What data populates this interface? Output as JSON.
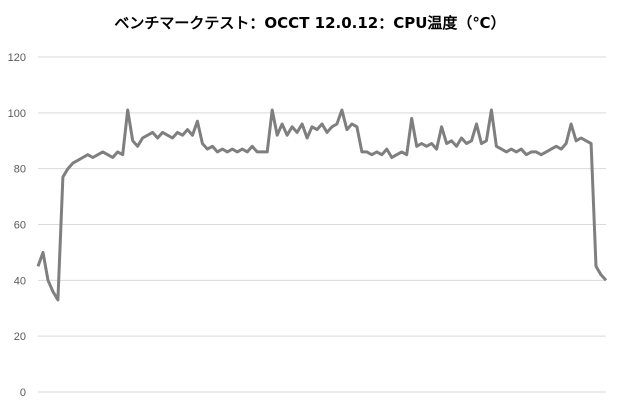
{
  "chart_data": {
    "type": "line",
    "title": "ベンチマークテスト：OCCT 12.0.12：CPU温度（℃）",
    "xlabel": "",
    "ylabel": "",
    "ylim": [
      0,
      120
    ],
    "yticks": [
      "0",
      "20",
      "40",
      "60",
      "80",
      "100",
      "120"
    ],
    "grid": true,
    "legend": "none",
    "line_color": "#7f7f7f",
    "series": [
      {
        "values": [
          45,
          50,
          40,
          36,
          33,
          77,
          80,
          82,
          83,
          84,
          85,
          84,
          85,
          86,
          85,
          84,
          86,
          85,
          101,
          90,
          88,
          91,
          92,
          93,
          91,
          93,
          92,
          91,
          93,
          92,
          94,
          92,
          97,
          89,
          87,
          88,
          86,
          87,
          86,
          87,
          86,
          87,
          86,
          88,
          86,
          86,
          86,
          101,
          92,
          96,
          92,
          95,
          93,
          96,
          91,
          95,
          94,
          96,
          93,
          95,
          96,
          101,
          94,
          96,
          95,
          86,
          86,
          85,
          86,
          85,
          87,
          84,
          85,
          86,
          85,
          98,
          88,
          89,
          88,
          89,
          87,
          95,
          89,
          90,
          88,
          91,
          89,
          90,
          96,
          89,
          90,
          101,
          88,
          87,
          86,
          87,
          86,
          87,
          85,
          86,
          86,
          85,
          86,
          87,
          88,
          87,
          89,
          96,
          90,
          91,
          90,
          89,
          45,
          42,
          40
        ]
      }
    ]
  }
}
